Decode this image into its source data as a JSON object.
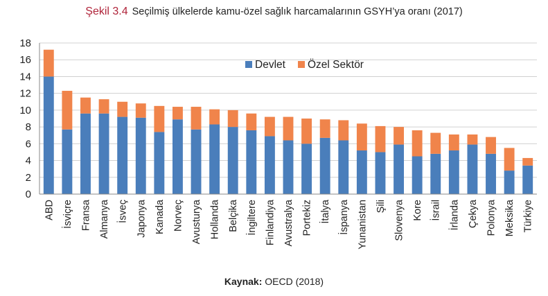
{
  "title": {
    "figure_label": "Şekil 3.4",
    "text": "Seçilmiş ülkelerde kamu-özel sağlık harcamalarının GSYH’ya oranı (2017)"
  },
  "source": {
    "label": "Kaynak:",
    "text": "OECD (2018)"
  },
  "colors": {
    "devlet": "#4a7ebb",
    "ozel": "#f0844b",
    "grid": "#d0d0d0",
    "axis": "#888888"
  },
  "chart_data": {
    "type": "bar",
    "stacked": true,
    "categories": [
      "ABD",
      "İsviçre",
      "Fransa",
      "Almanya",
      "İsveç",
      "Japonya",
      "Kanada",
      "Norveç",
      "Avusturya",
      "Hollanda",
      "Belçika",
      "İngiltere",
      "Finlandiya",
      "Avustralya",
      "Portekiz",
      "İtalya",
      "İspanya",
      "Yunanistan",
      "Şili",
      "Slovenya",
      "Kore",
      "İsrail",
      "İrlanda",
      "Çekya",
      "Polonya",
      "Meksika",
      "Türkiye"
    ],
    "series": [
      {
        "name": "Devlet",
        "values": [
          14.0,
          7.7,
          9.6,
          9.6,
          9.2,
          9.1,
          7.4,
          8.9,
          7.7,
          8.3,
          8.0,
          7.6,
          6.9,
          6.4,
          6.0,
          6.7,
          6.4,
          5.2,
          5.0,
          5.9,
          4.5,
          4.8,
          5.2,
          5.9,
          4.8,
          2.8,
          3.4
        ]
      },
      {
        "name": "Özel Sektör",
        "values": [
          3.2,
          4.6,
          1.9,
          1.7,
          1.8,
          1.7,
          3.1,
          1.5,
          2.7,
          1.8,
          2.0,
          2.0,
          2.3,
          2.8,
          3.0,
          2.2,
          2.4,
          3.2,
          3.1,
          2.1,
          3.1,
          2.5,
          1.9,
          1.2,
          2.0,
          2.7,
          0.9
        ]
      }
    ],
    "xlabel": "",
    "ylabel": "",
    "ylim": [
      0,
      18
    ],
    "yticks": [
      0,
      2,
      4,
      6,
      8,
      10,
      12,
      14,
      16,
      18
    ],
    "grid": true,
    "legend_position": "top-center"
  }
}
